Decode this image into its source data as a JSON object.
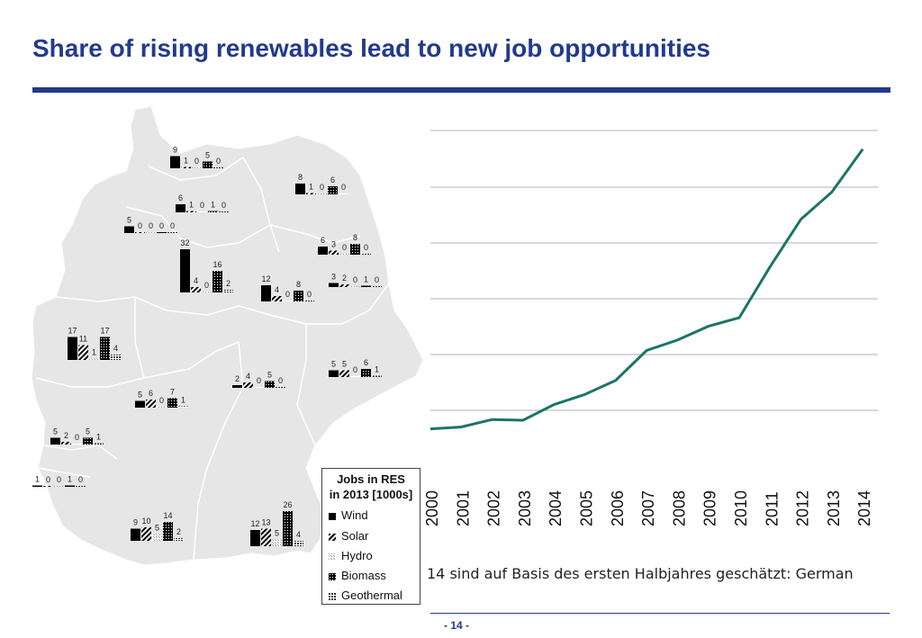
{
  "header": {
    "title": "Share of rising renewables lead to new job opportunities"
  },
  "footer": {
    "page_number": "- 14 -"
  },
  "note": {
    "text": "14 sind auf Basis des ersten Halbjahres geschätzt: German"
  },
  "colors": {
    "accent": "#233a8c",
    "line": "#1d7466",
    "map_fill": "#e6e6e6",
    "map_stroke": "#ffffff"
  },
  "legend": {
    "title_line1": "Jobs in RES",
    "title_line2": "in 2013 [1000s]",
    "items": [
      "Wind",
      "Solar",
      "Hydro",
      "Biomass",
      "Geothermal"
    ]
  },
  "chart_data": [
    {
      "type": "line",
      "title": "",
      "x": [
        "2000",
        "2001",
        "2002",
        "2003",
        "2004",
        "2005",
        "2006",
        "2007",
        "2008",
        "2009",
        "2010",
        "2011",
        "2012",
        "2013",
        "2014"
      ],
      "series": [
        {
          "values": [
            1.0,
            1.05,
            1.25,
            1.23,
            1.65,
            1.92,
            2.3,
            3.1,
            3.38,
            3.75,
            3.98,
            5.35,
            6.62,
            7.35,
            8.5
          ]
        }
      ],
      "ylim": [
        0,
        9
      ],
      "grid": true
    },
    {
      "type": "bar",
      "title": "Jobs in RES in 2013 [1000s]",
      "categories": [
        "Wind",
        "Solar",
        "Hydro",
        "Biomass",
        "Geothermal"
      ],
      "regions": [
        {
          "values": [
            9,
            1,
            0,
            5,
            0
          ]
        },
        {
          "values": [
            6,
            1,
            0,
            1,
            0
          ]
        },
        {
          "values": [
            8,
            1,
            0,
            6,
            0
          ]
        },
        {
          "values": [
            5,
            0,
            0,
            0,
            0
          ]
        },
        {
          "values": [
            6,
            3,
            0,
            8,
            0
          ]
        },
        {
          "values": [
            32,
            4,
            0,
            16,
            2
          ]
        },
        {
          "values": [
            12,
            4,
            0,
            8,
            0
          ]
        },
        {
          "values": [
            3,
            2,
            0,
            1,
            0
          ]
        },
        {
          "values": [
            17,
            11,
            1,
            17,
            4
          ]
        },
        {
          "values": [
            5,
            5,
            0,
            6,
            1
          ]
        },
        {
          "values": [
            2,
            4,
            0,
            5,
            0
          ]
        },
        {
          "values": [
            5,
            6,
            0,
            7,
            1
          ]
        },
        {
          "values": [
            5,
            2,
            0,
            5,
            1
          ]
        },
        {
          "values": [
            1,
            0,
            0,
            1,
            0
          ]
        },
        {
          "values": [
            9,
            10,
            5,
            14,
            2
          ]
        },
        {
          "values": [
            12,
            13,
            5,
            26,
            4
          ]
        }
      ]
    }
  ]
}
